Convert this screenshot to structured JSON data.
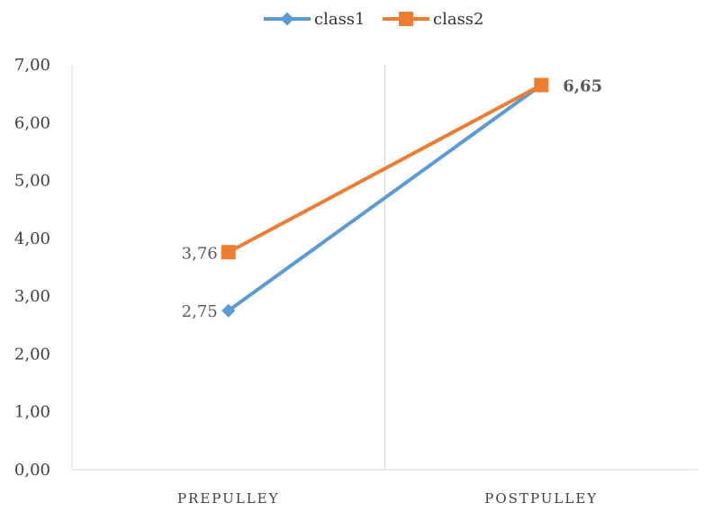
{
  "chart_data": {
    "type": "line",
    "categories": [
      "PREPULLEY",
      "POSTPULLEY"
    ],
    "series": [
      {
        "name": "class1",
        "values": [
          2.75,
          6.65
        ],
        "color": "#5B9BD5",
        "marker": "diamond",
        "labels": [
          "2,75",
          ""
        ]
      },
      {
        "name": "class2",
        "values": [
          3.76,
          6.65
        ],
        "color": "#ED7D31",
        "marker": "square",
        "labels": [
          "3,76",
          "6,65"
        ]
      }
    ],
    "ylim": [
      0,
      7
    ],
    "yticks": [
      0,
      1,
      2,
      3,
      4,
      5,
      6,
      7
    ],
    "ytick_labels": [
      "0,00",
      "1,00",
      "2,00",
      "3,00",
      "4,00",
      "5,00",
      "6,00",
      "7,00"
    ],
    "legend_position": "top",
    "grid": false,
    "title": "",
    "xlabel": "",
    "ylabel": ""
  }
}
